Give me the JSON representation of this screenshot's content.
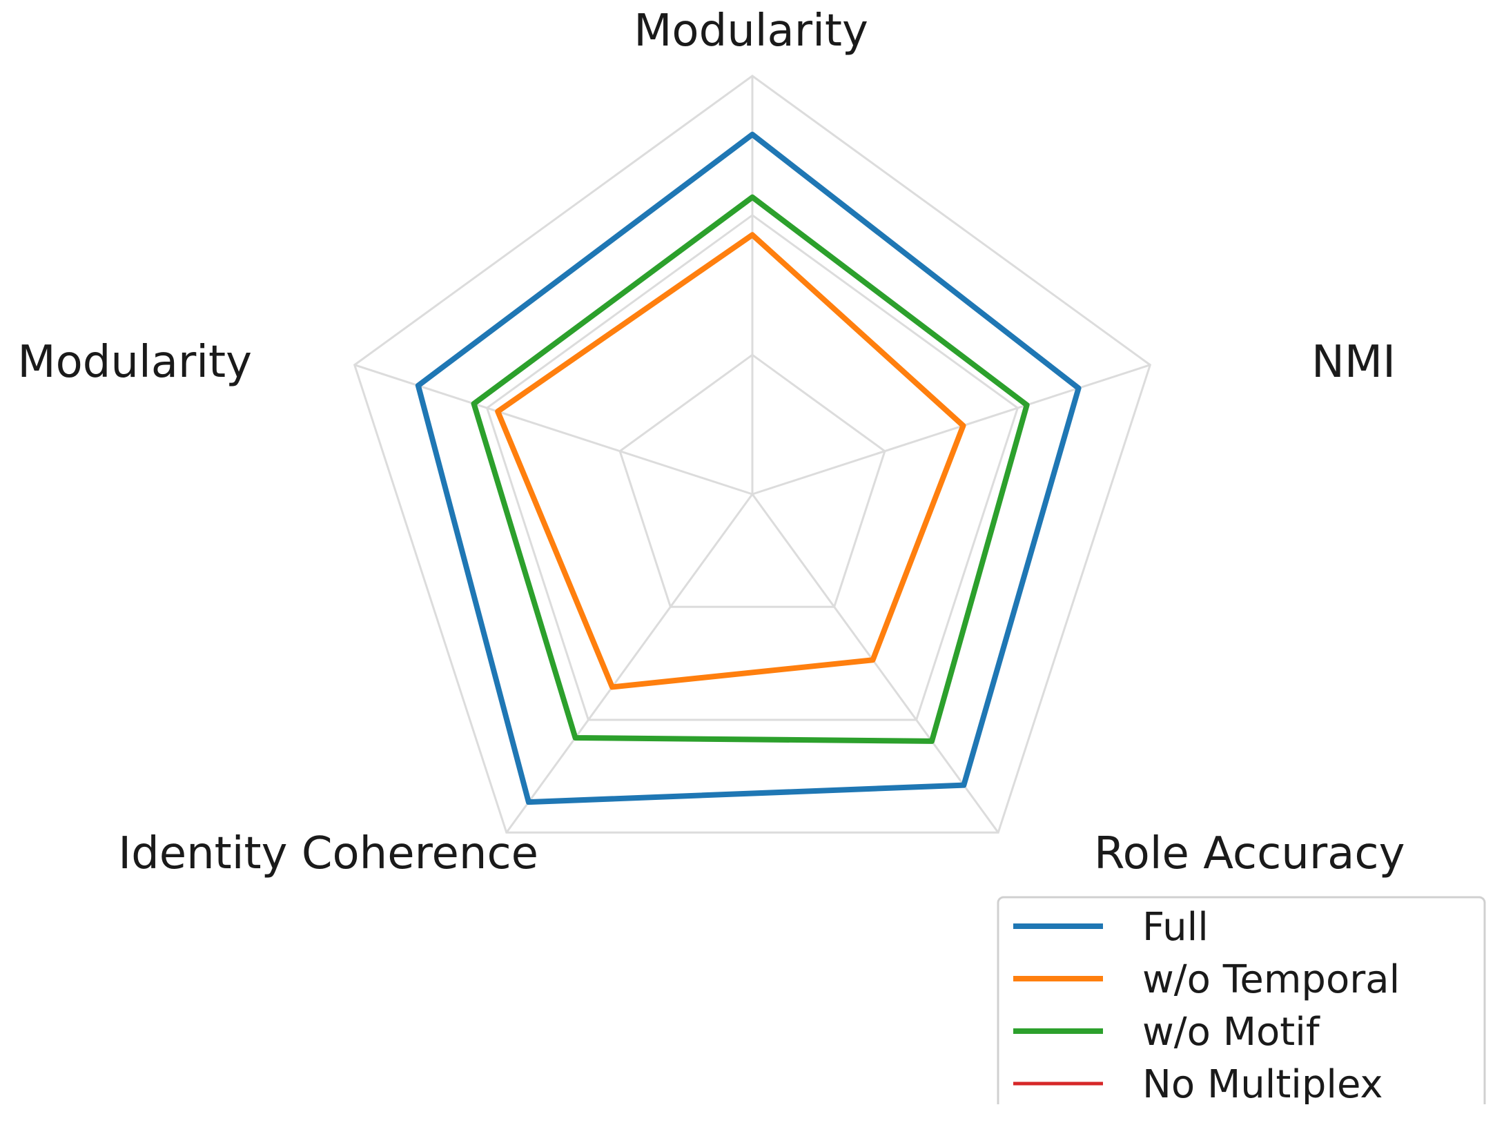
{
  "chart_data": {
    "type": "radar",
    "axes": [
      "Modularity",
      "NMI",
      "Role Accuracy",
      "Identity Coherence",
      "Modularity"
    ],
    "rmax": 1.0,
    "grid_levels": [
      0.333,
      0.667,
      1.0
    ],
    "grid": true,
    "legend_position": "bottom-right",
    "series": [
      {
        "name": "Full",
        "color": "#1f77b4",
        "values": [
          0.86,
          0.82,
          0.86,
          0.91,
          0.84
        ]
      },
      {
        "name": "w/o Temporal",
        "color": "#ff7f0e",
        "values": [
          0.62,
          0.53,
          0.49,
          0.57,
          0.64
        ]
      },
      {
        "name": "w/o Motif",
        "color": "#2ca02c",
        "values": [
          0.71,
          0.69,
          0.73,
          0.72,
          0.7
        ]
      },
      {
        "name": "No Multiplex",
        "color": "#d62728",
        "values": []
      }
    ]
  }
}
